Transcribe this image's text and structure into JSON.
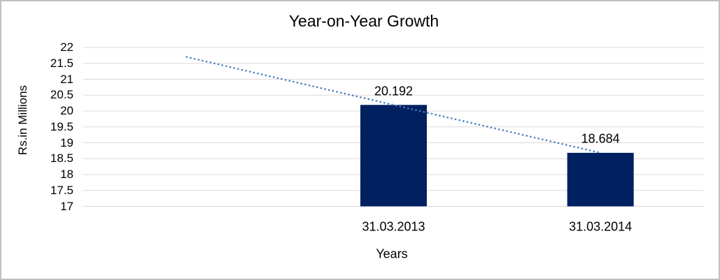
{
  "chart_data": {
    "type": "bar",
    "title": "Year-on-Year Growth",
    "xlabel": "Years",
    "ylabel": "Rs.in Millions",
    "categories": [
      "31.03.2013",
      "31.03.2014"
    ],
    "values": [
      20.192,
      18.684
    ],
    "data_labels": [
      "20.192",
      "18.684"
    ],
    "ylim": [
      17,
      22
    ],
    "yticks": [
      22,
      21.5,
      21,
      20.5,
      20,
      19.5,
      19,
      18.5,
      18,
      17.5,
      17
    ],
    "grid": true,
    "legend": false,
    "trendline": {
      "type": "linear",
      "style": "dotted",
      "values": [
        21.7,
        20.192,
        18.684
      ]
    },
    "colors": {
      "bar": "#002060",
      "trendline": "#4a7ebb",
      "gridline": "#d9d9d9",
      "text": "#000000",
      "border": "#bfbfbf"
    }
  }
}
